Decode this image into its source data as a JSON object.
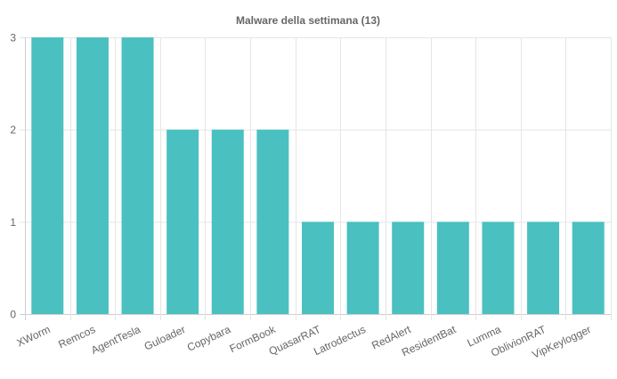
{
  "chart_data": {
    "type": "bar",
    "title": "Malware della settimana (13)",
    "categories": [
      "XWorm",
      "Remcos",
      "AgentTesla",
      "Guloader",
      "Copybara",
      "FormBook",
      "QuasarRAT",
      "Latrodectus",
      "RedAlert",
      "ResidentBat",
      "Lumma",
      "OblivionRAT",
      "VipKeylogger"
    ],
    "values": [
      3,
      3,
      3,
      2,
      2,
      2,
      1,
      1,
      1,
      1,
      1,
      1,
      1
    ],
    "yticks": [
      "0",
      "1",
      "2",
      "3"
    ],
    "ylim": [
      0,
      3
    ],
    "xlabel": "",
    "ylabel": "",
    "grid": true,
    "bar_color": "#4bc0c0",
    "grid_color": "#e5e5e5"
  }
}
